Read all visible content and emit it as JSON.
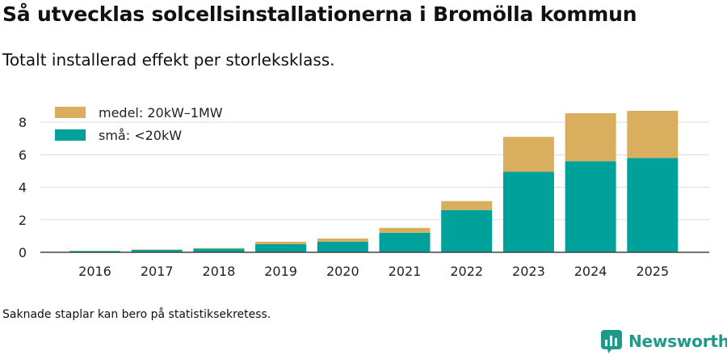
{
  "title": "Så utvecklas solcellsinstallationerna i Bromölla kommun",
  "subtitle": "Totalt installerad effekt per storleksklass.",
  "note": "Saknade staplar kan bero på statistiksekretess.",
  "logo": {
    "text": "Newsworthy",
    "icon": "newsworthy-logo-icon",
    "color": "#1f9a89"
  },
  "chart_data": {
    "type": "bar",
    "stacked": true,
    "title": "Så utvecklas solcellsinstallationerna i Bromölla kommun",
    "subtitle": "Totalt installerad effekt per storleksklass.",
    "xlabel": "",
    "ylabel": "",
    "ylim": [
      0,
      9
    ],
    "yticks": [
      0,
      2,
      4,
      6,
      8
    ],
    "grid": true,
    "legend_position": "top-left",
    "categories": [
      "2016",
      "2017",
      "2018",
      "2019",
      "2020",
      "2021",
      "2022",
      "2023",
      "2024",
      "2025"
    ],
    "series": [
      {
        "name": "små: <20kW",
        "color": "#00a19a",
        "values": [
          0.08,
          0.15,
          0.22,
          0.5,
          0.65,
          1.2,
          2.6,
          4.95,
          5.6,
          5.8
        ]
      },
      {
        "name": "medel: 20kW–1MW",
        "color": "#d9ae5f",
        "values": [
          0.0,
          0.02,
          0.04,
          0.15,
          0.2,
          0.3,
          0.55,
          2.15,
          2.95,
          2.9
        ]
      }
    ]
  }
}
